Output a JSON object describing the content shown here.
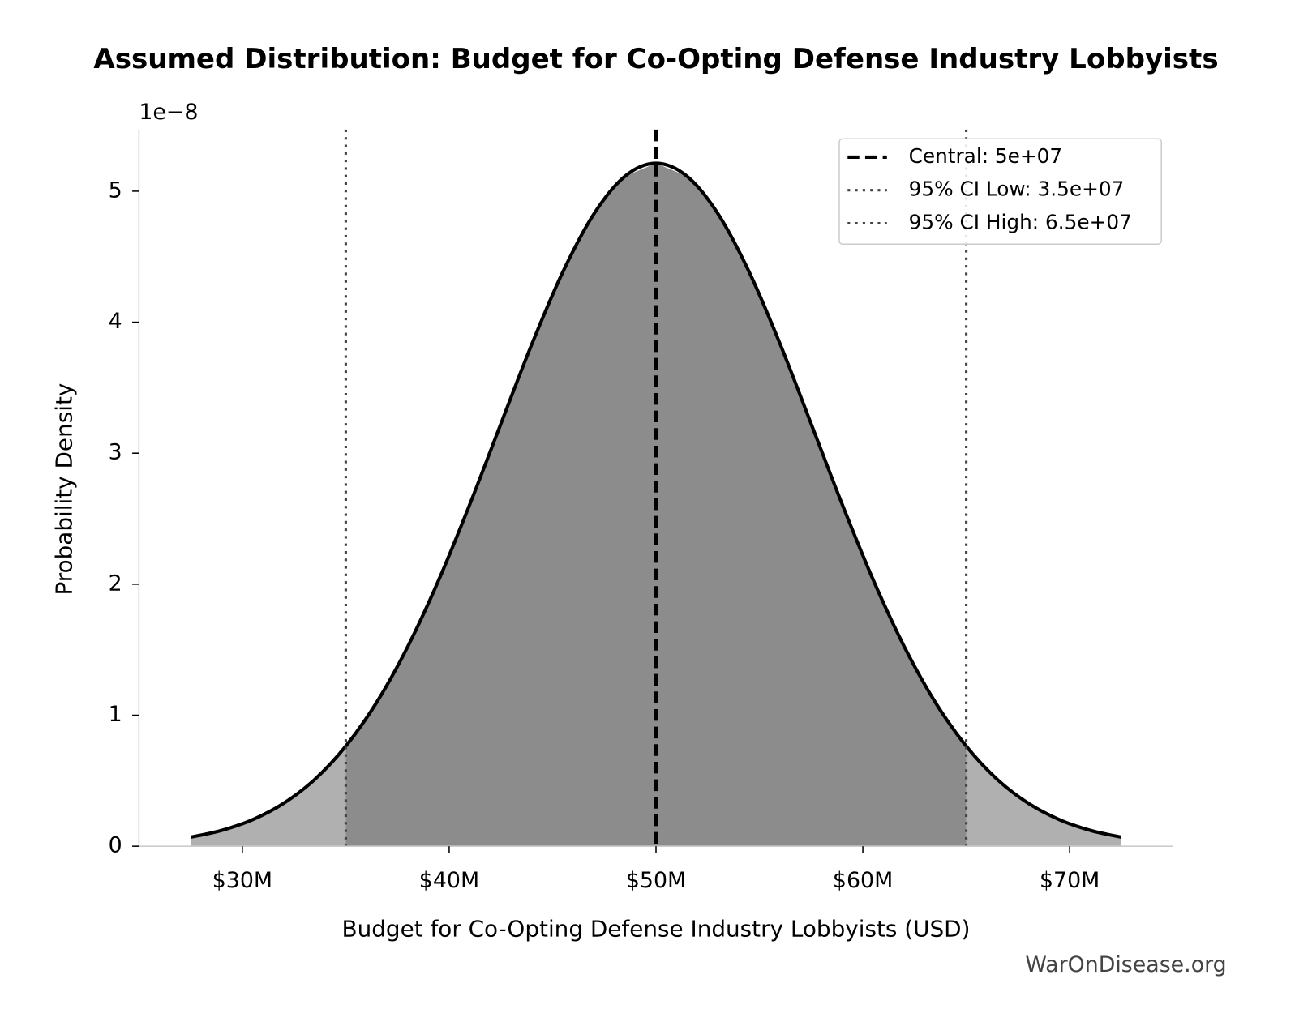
{
  "chart_data": {
    "type": "density",
    "title": "Assumed Distribution: Budget for Co-Opting Defense Industry Lobbyists",
    "x_label": "Budget for Co-Opting Defense Industry Lobbyists (USD)",
    "y_label": "Probability Density",
    "y_offset_label": "1e−8",
    "watermark": "WarOnDisease.org",
    "x": [
      27500000,
      29000000,
      30500000,
      32000000,
      33500000,
      35000000,
      36500000,
      38000000,
      39500000,
      41000000,
      42500000,
      44000000,
      45500000,
      47000000,
      48500000,
      50000000,
      51500000,
      53000000,
      54500000,
      56000000,
      57500000,
      59000000,
      60500000,
      62000000,
      63500000,
      65000000,
      66500000,
      68000000,
      69500000,
      71000000,
      72500000
    ],
    "values": [
      0.069,
      0.121,
      0.203,
      0.328,
      0.51,
      0.764,
      1.1,
      1.525,
      2.034,
      2.611,
      3.225,
      3.834,
      4.385,
      4.827,
      5.114,
      5.213,
      5.114,
      4.827,
      4.385,
      3.834,
      3.225,
      2.611,
      2.034,
      1.525,
      1.1,
      0.764,
      0.51,
      0.328,
      0.203,
      0.121,
      0.069
    ],
    "color": "#000000",
    "ci_fill": "#8c8c8c",
    "tail_fill": "#b0b0b0",
    "reference_lines": [
      {
        "name": "Central: 5e+07",
        "value": 50000000,
        "style": "dashed",
        "color": "#000000"
      },
      {
        "name": "95% CI Low: 3.5e+07",
        "value": 35000000,
        "style": "dotted",
        "color": "#444444"
      },
      {
        "name": "95% CI High: 6.5e+07",
        "value": 65000000,
        "style": "dotted",
        "color": "#444444"
      }
    ],
    "xlim": [
      25000000,
      75000000
    ],
    "xticks": [
      {
        "value": 30000000,
        "label": "$30M"
      },
      {
        "value": 40000000,
        "label": "$40M"
      },
      {
        "value": 50000000,
        "label": "$50M"
      },
      {
        "value": 60000000,
        "label": "$60M"
      },
      {
        "value": 70000000,
        "label": "$70M"
      }
    ],
    "ylim": [
      0,
      5.47
    ],
    "yticks": [
      0,
      1,
      2,
      3,
      4,
      5
    ],
    "grid": false,
    "legend": "upper right"
  }
}
